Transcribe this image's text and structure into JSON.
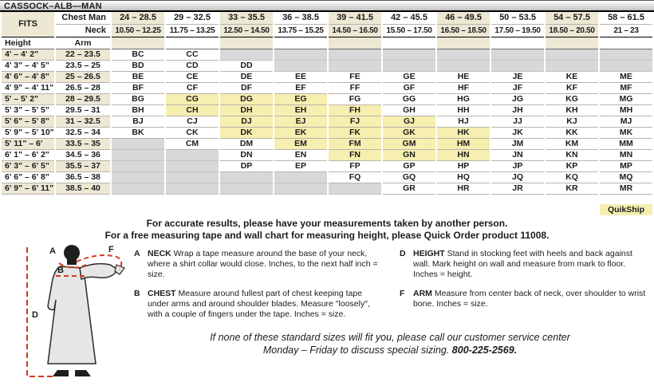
{
  "title": "CASSOCK–ALB—MAN",
  "colors": {
    "column_beige": "#EDE8D4",
    "quikship_yellow": "#F6EFB0",
    "unavailable_gray": "#D8D8D8",
    "measure_line_red": "#D13B1E"
  },
  "table": {
    "fits_label": "FITS",
    "chest_label": "Chest Man",
    "neck_label": "Neck",
    "height_label": "Height",
    "arm_label": "Arm",
    "chest_ranges": [
      "24 – 28.5",
      "29 – 32.5",
      "33 – 35.5",
      "36 – 38.5",
      "39 – 41.5",
      "42 – 45.5",
      "46 – 49.5",
      "50 – 53.5",
      "54 – 57.5",
      "58 – 61.5"
    ],
    "neck_ranges": [
      "10.50 – 12.25",
      "11.75 – 13.25",
      "12.50 – 14.50",
      "13.75 – 15.25",
      "14.50 – 16.50",
      "15.50 – 17.50",
      "16.50 – 18.50",
      "17.50 – 19.50",
      "18.50 – 20.50",
      "21 – 23"
    ],
    "rows": [
      {
        "height": "4' – 4' 2\"",
        "arm": "22 – 23.5",
        "cells": [
          "BC",
          "CC",
          "",
          "",
          "",
          "",
          "",
          "",
          "",
          ""
        ]
      },
      {
        "height": "4' 3\" – 4' 5\"",
        "arm": "23.5 – 25",
        "cells": [
          "BD",
          "CD",
          "DD",
          "",
          "",
          "",
          "",
          "",
          "",
          ""
        ]
      },
      {
        "height": "4' 6\" – 4' 8\"",
        "arm": "25 – 26.5",
        "cells": [
          "BE",
          "CE",
          "DE",
          "EE",
          "FE",
          "GE",
          "HE",
          "JE",
          "KE",
          "ME"
        ]
      },
      {
        "height": "4' 9\" – 4' 11\"",
        "arm": "26.5 – 28",
        "cells": [
          "BF",
          "CF",
          "DF",
          "EF",
          "FF",
          "GF",
          "HF",
          "JF",
          "KF",
          "MF"
        ]
      },
      {
        "height": "5' – 5' 2\"",
        "arm": "28 – 29.5",
        "cells": [
          "BG",
          "CG",
          "DG",
          "EG",
          "FG",
          "GG",
          "HG",
          "JG",
          "KG",
          "MG"
        ]
      },
      {
        "height": "5' 3\" – 5' 5\"",
        "arm": "29.5 – 31",
        "cells": [
          "BH",
          "CH",
          "DH",
          "EH",
          "FH",
          "GH",
          "HH",
          "JH",
          "KH",
          "MH"
        ]
      },
      {
        "height": "5' 6\" – 5' 8\"",
        "arm": "31 – 32.5",
        "cells": [
          "BJ",
          "CJ",
          "DJ",
          "EJ",
          "FJ",
          "GJ",
          "HJ",
          "JJ",
          "KJ",
          "MJ"
        ]
      },
      {
        "height": "5' 9\" – 5' 10\"",
        "arm": "32.5 – 34",
        "cells": [
          "BK",
          "CK",
          "DK",
          "EK",
          "FK",
          "GK",
          "HK",
          "JK",
          "KK",
          "MK"
        ]
      },
      {
        "height": "5' 11\" – 6'",
        "arm": "33.5 – 35",
        "cells": [
          "",
          "CM",
          "DM",
          "EM",
          "FM",
          "GM",
          "HM",
          "JM",
          "KM",
          "MM"
        ]
      },
      {
        "height": "6' 1\" – 6' 2\"",
        "arm": "34.5 – 36",
        "cells": [
          "",
          "",
          "DN",
          "EN",
          "FN",
          "GN",
          "HN",
          "JN",
          "KN",
          "MN"
        ]
      },
      {
        "height": "6' 3\" – 6' 5\"",
        "arm": "35.5 – 37",
        "cells": [
          "",
          "",
          "DP",
          "EP",
          "FP",
          "GP",
          "HP",
          "JP",
          "KP",
          "MP"
        ]
      },
      {
        "height": "6' 6\" – 6' 8\"",
        "arm": "36.5 – 38",
        "cells": [
          "",
          "",
          "",
          "",
          "FQ",
          "GQ",
          "HQ",
          "JQ",
          "KQ",
          "MQ"
        ]
      },
      {
        "height": "6' 9\" – 6' 11\"",
        "arm": "38.5 – 40",
        "cells": [
          "",
          "",
          "",
          "",
          "",
          "GR",
          "HR",
          "JR",
          "KR",
          "MR"
        ]
      }
    ],
    "quikship_codes": [
      "CG",
      "DG",
      "EG",
      "CH",
      "DH",
      "EH",
      "FH",
      "DJ",
      "EJ",
      "FJ",
      "GJ",
      "DK",
      "EK",
      "FK",
      "GK",
      "HK",
      "EM",
      "FM",
      "GM",
      "HM",
      "FN",
      "GN",
      "HN"
    ],
    "quikship_label": "QuikShip"
  },
  "notes": {
    "line1": "For accurate results, please have your measurements taken by another person.",
    "line2": "For a free measuring tape and wall chart for measuring height, please Quick Order product 11008."
  },
  "instructions": {
    "left": [
      {
        "key": "A",
        "term": "NECK",
        "text": "Wrap a tape measure around the base of your neck, where a shirt collar would close. Inches, to the next half inch = size."
      },
      {
        "key": "B",
        "term": "CHEST",
        "text": "Measure around fullest part of chest keeping tape under arms and around shoulder blades. Measure \"loosely\", with a couple of fingers under the tape. Inches = size."
      }
    ],
    "right": [
      {
        "key": "D",
        "term": "HEIGHT",
        "text": "Stand in stocking feet with heels and back against wall. Mark height on wall and measure from mark to floor. Inches = height."
      },
      {
        "key": "F",
        "term": "ARM",
        "text": "Measure from center back of neck, over shoulder to wrist bone. Inches = size."
      }
    ]
  },
  "footer": {
    "line1": "If none of these standard sizes will fit you, please call our customer service center",
    "line2_prefix": "Monday – Friday to discuss special sizing. ",
    "phone": "800-225-2569."
  },
  "figure": {
    "label_a": "A",
    "label_b": "B",
    "label_d": "D",
    "label_f": "F"
  }
}
